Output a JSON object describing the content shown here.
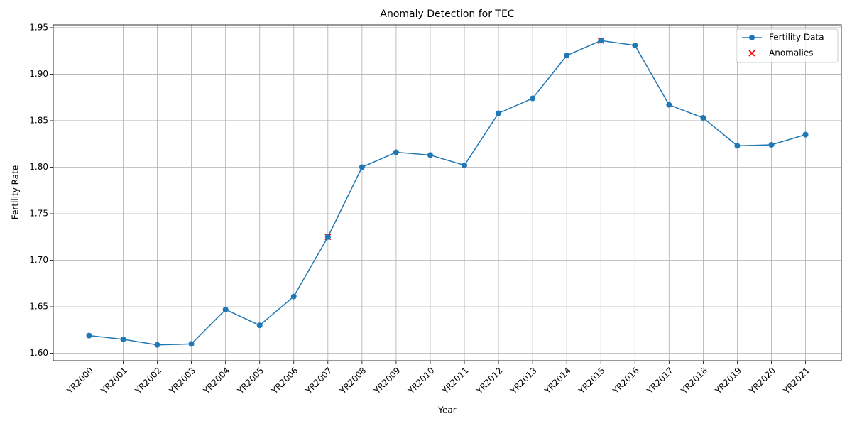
{
  "chart_data": {
    "type": "line",
    "title": "Anomaly Detection for TEC",
    "xlabel": "Year",
    "ylabel": "Fertility Rate",
    "categories": [
      "YR2000",
      "YR2001",
      "YR2002",
      "YR2003",
      "YR2004",
      "YR2005",
      "YR2006",
      "YR2007",
      "YR2008",
      "YR2009",
      "YR2010",
      "YR2011",
      "YR2012",
      "YR2013",
      "YR2014",
      "YR2015",
      "YR2016",
      "YR2017",
      "YR2018",
      "YR2019",
      "YR2020",
      "YR2021"
    ],
    "series": [
      {
        "name": "Fertility Data",
        "color": "#1f77b4",
        "values": [
          1.619,
          1.615,
          1.609,
          1.61,
          1.647,
          1.63,
          1.661,
          1.725,
          1.8,
          1.816,
          1.813,
          1.802,
          1.858,
          1.874,
          1.92,
          1.936,
          1.931,
          1.867,
          1.853,
          1.823,
          1.824,
          1.835
        ]
      }
    ],
    "anomalies": {
      "name": "Anomalies",
      "color": "red",
      "x": [
        "YR2007",
        "YR2015"
      ],
      "values": [
        1.725,
        1.936
      ]
    },
    "ylim": [
      1.592,
      1.953
    ],
    "yticks": [
      {
        "value": 1.6,
        "label": "1.60"
      },
      {
        "value": 1.65,
        "label": "1.65"
      },
      {
        "value": 1.7,
        "label": "1.70"
      },
      {
        "value": 1.75,
        "label": "1.75"
      },
      {
        "value": 1.8,
        "label": "1.80"
      },
      {
        "value": 1.85,
        "label": "1.85"
      },
      {
        "value": 1.9,
        "label": "1.90"
      },
      {
        "value": 1.95,
        "label": "1.95"
      }
    ],
    "grid": true,
    "legend": "upper right"
  }
}
